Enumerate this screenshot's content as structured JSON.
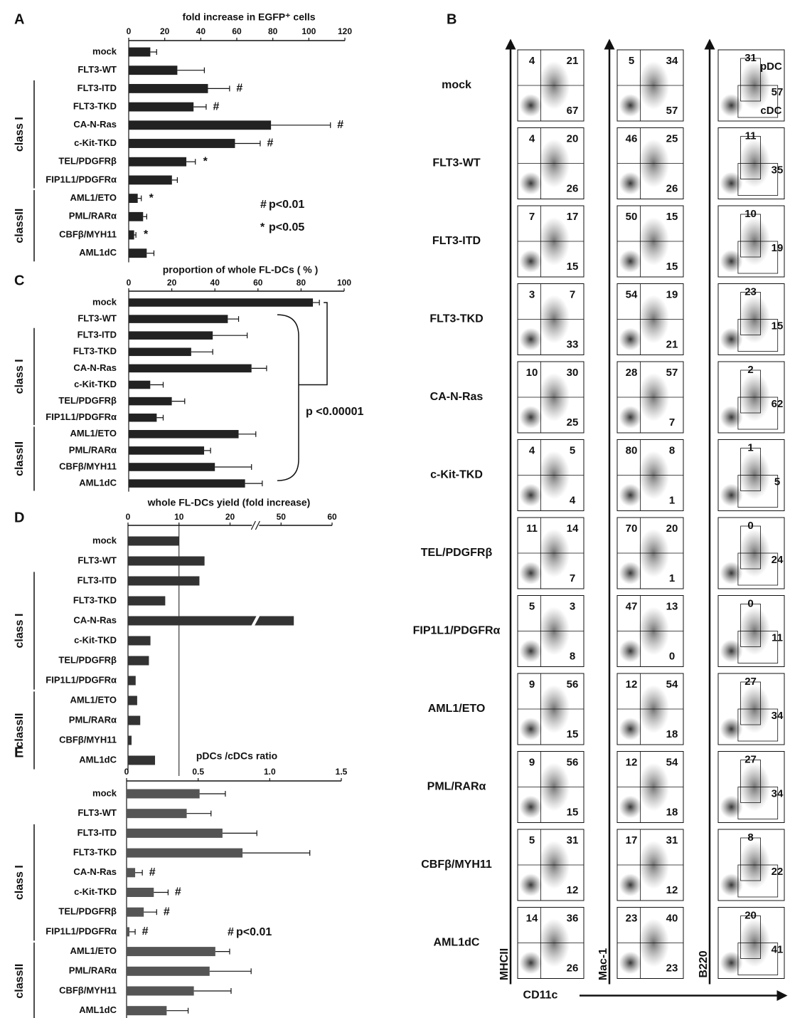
{
  "chart_data": [
    {
      "panel": "A",
      "type": "hbar",
      "title": "fold increase in EGFP⁺ cells",
      "groups": [
        {
          "label": null,
          "categories": [
            "mock",
            "FLT3-WT"
          ]
        },
        {
          "label": "class I",
          "categories": [
            "FLT3-ITD",
            "FLT3-TKD",
            "CA-N-Ras",
            "c-Kit-TKD",
            "TEL/PDGFRβ",
            "FIP1L1/PDGFRα"
          ]
        },
        {
          "label": "classII",
          "categories": [
            "AML1/ETO",
            "PML/RARα",
            "CBFβ/MYH11",
            "AML1dC"
          ]
        }
      ],
      "values": [
        12,
        27,
        44,
        36,
        79,
        59,
        32,
        24,
        5,
        8,
        3,
        10
      ],
      "errors": [
        3.5,
        15,
        12,
        7,
        33,
        14,
        5,
        3,
        2,
        2,
        1,
        4
      ],
      "markers": [
        null,
        null,
        "#",
        "#",
        "#",
        "#",
        "*",
        null,
        "*",
        null,
        "*",
        null
      ],
      "legend": [
        {
          "symbol": "#",
          "label": "p<0.01"
        },
        {
          "symbol": "*",
          "label": "p<0.05"
        }
      ],
      "xlim": [
        0,
        120
      ],
      "xticks": [
        0,
        20,
        40,
        60,
        80,
        100,
        120
      ],
      "color": "#222222"
    },
    {
      "panel": "C",
      "type": "hbar",
      "title": "proportion of whole FL-DCs ( % )",
      "groups": [
        {
          "label": null,
          "categories": [
            "mock",
            "FLT3-WT"
          ]
        },
        {
          "label": "class I",
          "categories": [
            "FLT3-ITD",
            "FLT3-TKD",
            "CA-N-Ras",
            "c-Kit-TKD",
            "TEL/PDGFRβ",
            "FIP1L1/PDGFRα"
          ]
        },
        {
          "label": "classII",
          "categories": [
            "AML1/ETO",
            "PML/RARα",
            "CBFβ/MYH11",
            "AML1dC"
          ]
        }
      ],
      "values": [
        85.5,
        46,
        39,
        29,
        57,
        10,
        20,
        13,
        51,
        35,
        40,
        54
      ],
      "errors": [
        3,
        5,
        16,
        10,
        7,
        6,
        6,
        3,
        8,
        3,
        17,
        8
      ],
      "annotation": "p <0.00001",
      "xlim": [
        0,
        100
      ],
      "xticks": [
        0,
        20,
        40,
        60,
        80,
        100
      ],
      "color": "#222222"
    },
    {
      "panel": "D",
      "type": "hbar",
      "title": "whole FL-DCs yield (fold increase)",
      "groups": [
        {
          "label": null,
          "categories": [
            "mock",
            "FLT3-WT"
          ]
        },
        {
          "label": "class I",
          "categories": [
            "FLT3-ITD",
            "FLT3-TKD",
            "CA-N-Ras",
            "c-Kit-TKD",
            "TEL/PDGFRβ",
            "FIP1L1/PDGFRα"
          ]
        },
        {
          "label": "classII",
          "categories": [
            "AML1/ETO",
            "PML/RARα",
            "CBFβ/MYH11",
            "AML1dC"
          ]
        }
      ],
      "values": [
        10,
        15,
        14,
        7.3,
        52.5,
        4.4,
        4.1,
        1.5,
        1.8,
        2.4,
        0.7,
        5.3
      ],
      "axis_break": true,
      "reference_line": 10,
      "xlim": [
        0,
        60
      ],
      "xticks": [
        0,
        10,
        20,
        50,
        60
      ],
      "color": "#333333"
    },
    {
      "panel": "E",
      "type": "hbar",
      "title": "pDCs /cDCs ratio",
      "groups": [
        {
          "label": null,
          "categories": [
            "mock",
            "FLT3-WT"
          ]
        },
        {
          "label": "class I",
          "categories": [
            "FLT3-ITD",
            "FLT3-TKD",
            "CA-N-Ras",
            "c-Kit-TKD",
            "TEL/PDGFRβ",
            "FIP1L1/PDGFRα"
          ]
        },
        {
          "label": "classII",
          "categories": [
            "AML1/ETO",
            "PML/RARα",
            "CBFβ/MYH11",
            "AML1dC"
          ]
        }
      ],
      "values": [
        0.51,
        0.42,
        0.67,
        0.81,
        0.06,
        0.19,
        0.12,
        0.02,
        0.62,
        0.58,
        0.47,
        0.28
      ],
      "errors": [
        0.18,
        0.17,
        0.24,
        0.47,
        0.05,
        0.1,
        0.09,
        0.04,
        0.1,
        0.29,
        0.26,
        0.15
      ],
      "markers": [
        null,
        null,
        null,
        null,
        "#",
        "#",
        "#",
        "#",
        null,
        null,
        null,
        null
      ],
      "legend": [
        {
          "symbol": "#",
          "label": "p<0.01"
        }
      ],
      "xlim": [
        0,
        1.5
      ],
      "xticks": [
        0,
        0.5,
        {
          "value": 1,
          "label": "1.0"
        },
        1.5
      ],
      "color": "#555555"
    },
    {
      "panel": "B",
      "type": "flow",
      "y_labels": [
        "MHCII",
        "Mac-1",
        "B220"
      ],
      "x_label": "CD11c",
      "gate_labels": [
        "pDC",
        "cDC"
      ],
      "rows": [
        {
          "label": "mock",
          "mhcii": [
            4,
            21,
            67
          ],
          "mac1": [
            5,
            34,
            57
          ],
          "b220": [
            31,
            57
          ]
        },
        {
          "label": "FLT3-WT",
          "mhcii": [
            4,
            20,
            26
          ],
          "mac1": [
            46,
            25,
            26
          ],
          "b220": [
            11,
            35
          ]
        },
        {
          "label": "FLT3-ITD",
          "mhcii": [
            7,
            17,
            15
          ],
          "mac1": [
            50,
            15,
            15
          ],
          "b220": [
            10,
            19
          ]
        },
        {
          "label": "FLT3-TKD",
          "mhcii": [
            3,
            7,
            33
          ],
          "mac1": [
            54,
            19,
            21
          ],
          "b220": [
            23,
            15
          ]
        },
        {
          "label": "CA-N-Ras",
          "mhcii": [
            10,
            30,
            25
          ],
          "mac1": [
            28,
            57,
            7
          ],
          "b220": [
            2,
            62
          ]
        },
        {
          "label": "c-Kit-TKD",
          "mhcii": [
            4,
            5,
            4
          ],
          "mac1": [
            80,
            8,
            1
          ],
          "b220": [
            1,
            5
          ]
        },
        {
          "label": "TEL/PDGFRβ",
          "mhcii": [
            11,
            14,
            7
          ],
          "mac1": [
            70,
            20,
            1
          ],
          "b220": [
            0,
            24
          ]
        },
        {
          "label": "FIP1L1/PDGFRα",
          "mhcii": [
            5,
            3,
            8
          ],
          "mac1": [
            47,
            13,
            0
          ],
          "b220": [
            0,
            11
          ]
        },
        {
          "label": "AML1/ETO",
          "mhcii": [
            9,
            56,
            15
          ],
          "mac1": [
            12,
            54,
            18
          ],
          "b220": [
            27,
            34
          ]
        },
        {
          "label": "PML/RARα",
          "mhcii": [
            9,
            56,
            15
          ],
          "mac1": [
            12,
            54,
            18
          ],
          "b220": [
            27,
            34
          ]
        },
        {
          "label": "CBFβ/MYH11",
          "mhcii": [
            5,
            31,
            12
          ],
          "mac1": [
            17,
            31,
            12
          ],
          "b220": [
            8,
            22
          ]
        },
        {
          "label": "AML1dC",
          "mhcii": [
            14,
            36,
            26
          ],
          "mac1": [
            23,
            40,
            23
          ],
          "b220": [
            20,
            41
          ]
        }
      ]
    }
  ]
}
